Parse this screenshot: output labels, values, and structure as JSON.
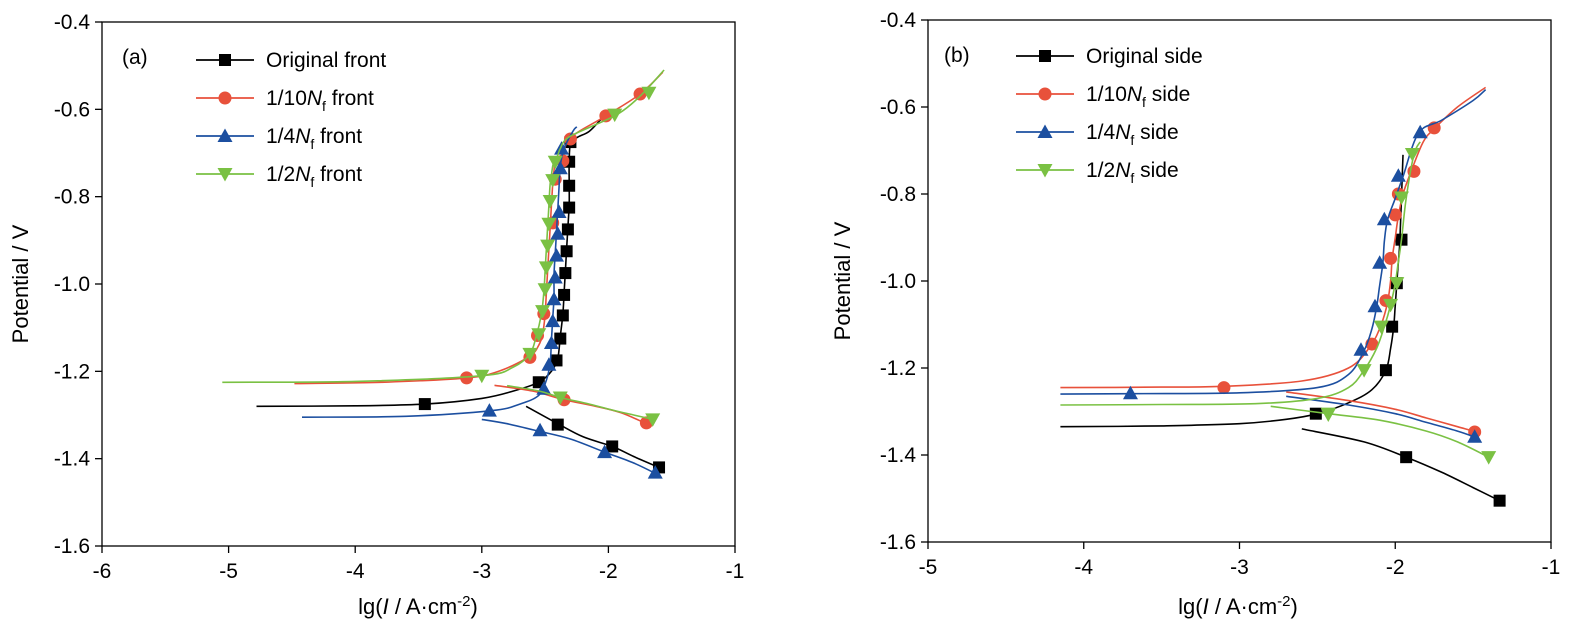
{
  "chart_data": [
    {
      "type": "line",
      "panel_label": "(a)",
      "xlabel": {
        "prefix": "lg(",
        "italic": "I",
        "mid": " / A·cm",
        "sup": "-2",
        "suffix": ")"
      },
      "ylabel": "Potential / V",
      "xlim": [
        -6,
        -1
      ],
      "ylim": [
        -1.6,
        -0.4
      ],
      "x_ticks": [
        -6,
        -5,
        -4,
        -3,
        -2,
        -1
      ],
      "x_tick_labels": [
        "-6",
        "-5",
        "-4",
        "-3",
        "-2",
        "-1"
      ],
      "y_ticks": [
        -1.6,
        -1.4,
        -1.2,
        -1.0,
        -0.8,
        -0.6,
        -0.4
      ],
      "y_tick_labels": [
        "-1.6",
        "-1.4",
        "-1.2",
        "-1.0",
        "-0.8",
        "-0.6",
        "-0.4"
      ],
      "grid": false,
      "legend_position": "top-left",
      "series": [
        {
          "name": "Original front",
          "legend": {
            "pre": "Original front",
            "italic": "",
            "sub": "",
            "post": ""
          },
          "color": "#000000",
          "marker": "square",
          "x": [
            -4.78,
            -4.0,
            -3.45,
            -3.0,
            -2.75,
            -2.55,
            -2.45,
            -2.4,
            -2.38,
            -2.36,
            -2.35,
            -2.34,
            -2.33,
            -2.32,
            -2.31,
            -2.31,
            -2.31,
            -2.3,
            -2.25,
            -2.15,
            -2.05
          ],
          "y": [
            -1.28,
            -1.279,
            -1.275,
            -1.262,
            -1.245,
            -1.225,
            -1.2,
            -1.17,
            -1.12,
            -1.07,
            -1.02,
            -0.97,
            -0.92,
            -0.87,
            -0.82,
            -0.77,
            -0.72,
            -0.68,
            -0.665,
            -0.65,
            -0.62
          ],
          "markers_x": [
            -3.45,
            -2.55,
            -2.41,
            -2.38,
            -2.36,
            -2.35,
            -2.34,
            -2.33,
            -2.32,
            -2.31,
            -2.31,
            -2.31,
            -2.3
          ],
          "markers_y": [
            -1.275,
            -1.225,
            -1.175,
            -1.125,
            -1.072,
            -1.025,
            -0.975,
            -0.925,
            -0.875,
            -0.825,
            -0.775,
            -0.72,
            -0.675
          ],
          "branch_x": [
            -2.65,
            -2.4,
            -2.2,
            -1.97,
            -1.8,
            -1.6
          ],
          "branch_y": [
            -1.28,
            -1.32,
            -1.35,
            -1.372,
            -1.395,
            -1.42
          ],
          "branch_markers_x": [
            -2.4,
            -1.97,
            -1.6
          ],
          "branch_markers_y": [
            -1.322,
            -1.372,
            -1.42
          ]
        },
        {
          "name": "1/10Nf front",
          "legend": {
            "pre": "1/10",
            "italic": "N",
            "sub": "f",
            "post": " front"
          },
          "color": "#e8513b",
          "marker": "circle",
          "x": [
            -4.48,
            -3.8,
            -3.12,
            -2.85,
            -2.62,
            -2.55,
            -2.52,
            -2.5,
            -2.49,
            -2.48,
            -2.47,
            -2.46,
            -2.45,
            -2.44,
            -2.43,
            -2.42,
            -2.4,
            -2.36,
            -2.3,
            -2.02,
            -1.75,
            -1.57
          ],
          "y": [
            -1.228,
            -1.225,
            -1.215,
            -1.198,
            -1.165,
            -1.14,
            -1.115,
            -1.07,
            -1.02,
            -0.97,
            -0.92,
            -0.87,
            -0.82,
            -0.77,
            -0.74,
            -0.72,
            -0.715,
            -0.71,
            -0.665,
            -0.615,
            -0.565,
            -0.515
          ],
          "markers_x": [
            -3.12,
            -2.62,
            -2.56,
            -2.51,
            -2.44,
            -2.42,
            -2.36,
            -2.3,
            -2.02,
            -1.75
          ],
          "markers_y": [
            -1.215,
            -1.168,
            -1.118,
            -1.068,
            -0.86,
            -0.76,
            -0.718,
            -0.668,
            -0.615,
            -0.565
          ],
          "branch_x": [
            -2.9,
            -2.6,
            -2.35,
            -2.1,
            -1.9,
            -1.7
          ],
          "branch_y": [
            -1.232,
            -1.245,
            -1.265,
            -1.28,
            -1.295,
            -1.32
          ],
          "branch_markers_x": [
            -2.35,
            -1.7
          ],
          "branch_markers_y": [
            -1.265,
            -1.318
          ]
        },
        {
          "name": "1/4Nf front",
          "legend": {
            "pre": "1/4",
            "italic": "N",
            "sub": "f",
            "post": " front"
          },
          "color": "#1c4fa0",
          "marker": "triangle-up",
          "x": [
            -4.42,
            -3.6,
            -2.92,
            -2.7,
            -2.55,
            -2.49,
            -2.46,
            -2.45,
            -2.44,
            -2.43,
            -2.43,
            -2.42,
            -2.41,
            -2.4,
            -2.39,
            -2.38,
            -2.35,
            -2.28,
            -2.25
          ],
          "y": [
            -1.305,
            -1.303,
            -1.29,
            -1.275,
            -1.255,
            -1.22,
            -1.18,
            -1.13,
            -1.08,
            -1.03,
            -0.98,
            -0.93,
            -0.88,
            -0.83,
            -0.78,
            -0.73,
            -0.69,
            -0.65,
            -0.64
          ],
          "markers_x": [
            -2.94,
            -2.51,
            -2.47,
            -2.45,
            -2.44,
            -2.43,
            -2.42,
            -2.41,
            -2.4,
            -2.39,
            -2.38,
            -2.37
          ],
          "markers_y": [
            -1.29,
            -1.24,
            -1.185,
            -1.135,
            -1.085,
            -1.035,
            -0.985,
            -0.935,
            -0.885,
            -0.835,
            -0.735,
            -0.69
          ],
          "branch_x": [
            -3.0,
            -2.8,
            -2.55,
            -2.3,
            -2.03,
            -1.8,
            -1.62
          ],
          "branch_y": [
            -1.31,
            -1.32,
            -1.337,
            -1.355,
            -1.385,
            -1.41,
            -1.435
          ],
          "branch_markers_x": [
            -2.54,
            -2.03,
            -1.63
          ],
          "branch_markers_y": [
            -1.335,
            -1.385,
            -1.432
          ]
        },
        {
          "name": "1/2Nf front",
          "legend": {
            "pre": "1/2",
            "italic": "N",
            "sub": "f",
            "post": " front"
          },
          "color": "#7ac143",
          "marker": "triangle-down",
          "x": [
            -5.05,
            -4.0,
            -3.0,
            -2.75,
            -2.62,
            -2.57,
            -2.53,
            -2.51,
            -2.5,
            -2.49,
            -2.48,
            -2.47,
            -2.46,
            -2.45,
            -2.44,
            -2.43,
            -2.42,
            -2.4,
            -2.38,
            -2.32,
            -2.1,
            -1.92,
            -1.75,
            -1.56
          ],
          "y": [
            -1.225,
            -1.223,
            -1.21,
            -1.19,
            -1.16,
            -1.12,
            -1.07,
            -1.02,
            -0.97,
            -0.92,
            -0.87,
            -0.82,
            -0.77,
            -0.75,
            -0.73,
            -0.72,
            -0.715,
            -0.705,
            -0.69,
            -0.665,
            -0.635,
            -0.61,
            -0.57,
            -0.51
          ],
          "markers_x": [
            -3.0,
            -2.62,
            -2.55,
            -2.52,
            -2.5,
            -2.49,
            -2.48,
            -2.47,
            -2.46,
            -2.44,
            -2.42,
            -1.95,
            -1.68
          ],
          "markers_y": [
            -1.21,
            -1.16,
            -1.115,
            -1.062,
            -1.012,
            -0.962,
            -0.912,
            -0.862,
            -0.81,
            -0.762,
            -0.72,
            -0.612,
            -0.562
          ],
          "branch_x": [
            -2.8,
            -2.55,
            -2.38,
            -2.15,
            -1.95,
            -1.8,
            -1.65
          ],
          "branch_y": [
            -1.233,
            -1.245,
            -1.26,
            -1.275,
            -1.29,
            -1.3,
            -1.31
          ],
          "branch_markers_x": [
            -2.38,
            -1.65
          ],
          "branch_markers_y": [
            -1.26,
            -1.31
          ]
        }
      ]
    },
    {
      "type": "line",
      "panel_label": "(b)",
      "xlabel": {
        "prefix": "lg(",
        "italic": "I",
        "mid": " / A·cm",
        "sup": "-2",
        "suffix": ")"
      },
      "ylabel": "Potential / V",
      "xlim": [
        -5,
        -1
      ],
      "ylim": [
        -1.6,
        -0.4
      ],
      "x_ticks": [
        -5,
        -4,
        -3,
        -2,
        -1
      ],
      "x_tick_labels": [
        "-5",
        "-4",
        "-3",
        "-2",
        "-1"
      ],
      "y_ticks": [
        -1.6,
        -1.4,
        -1.2,
        -1.0,
        -0.8,
        -0.6,
        -0.4
      ],
      "y_tick_labels": [
        "-1.6",
        "-1.4",
        "-1.2",
        "-1.0",
        "-0.8",
        "-0.6",
        "-0.4"
      ],
      "grid": false,
      "legend_position": "top-left",
      "series": [
        {
          "name": "Original side",
          "legend": {
            "pre": "Original side",
            "italic": "",
            "sub": "",
            "post": ""
          },
          "color": "#000000",
          "marker": "square",
          "x": [
            -4.15,
            -3.5,
            -3.0,
            -2.7,
            -2.5,
            -2.3,
            -2.15,
            -2.06,
            -2.03,
            -2.01,
            -2.0,
            -1.99,
            -1.98,
            -1.97,
            -1.95
          ],
          "y": [
            -1.335,
            -1.333,
            -1.328,
            -1.318,
            -1.305,
            -1.28,
            -1.25,
            -1.205,
            -1.155,
            -1.105,
            -1.055,
            -1.005,
            -0.955,
            -0.905,
            -0.71
          ],
          "markers_x": [
            -2.51,
            -2.06,
            -2.02,
            -1.99,
            -1.96
          ],
          "markers_y": [
            -1.305,
            -1.205,
            -1.105,
            -1.005,
            -0.905
          ],
          "branch_x": [
            -2.6,
            -2.2,
            -1.93,
            -1.7,
            -1.5,
            -1.33
          ],
          "branch_y": [
            -1.34,
            -1.37,
            -1.405,
            -1.44,
            -1.475,
            -1.505
          ],
          "branch_markers_x": [
            -1.93,
            -1.33
          ],
          "branch_markers_y": [
            -1.405,
            -1.505
          ]
        },
        {
          "name": "1/10Nf side",
          "legend": {
            "pre": "1/10",
            "italic": "N",
            "sub": "f",
            "post": " side"
          },
          "color": "#e8513b",
          "marker": "circle",
          "x": [
            -4.15,
            -3.5,
            -3.1,
            -2.6,
            -2.3,
            -2.16,
            -2.09,
            -2.05,
            -2.03,
            -2.02,
            -2.0,
            -1.98,
            -1.95,
            -1.9,
            -1.82,
            -1.75,
            -1.6,
            -1.42
          ],
          "y": [
            -1.245,
            -1.244,
            -1.242,
            -1.23,
            -1.2,
            -1.15,
            -1.1,
            -1.05,
            -1.0,
            -0.95,
            -0.9,
            -0.85,
            -0.8,
            -0.75,
            -0.68,
            -0.65,
            -0.6,
            -0.555
          ],
          "markers_x": [
            -3.1,
            -2.15,
            -2.06,
            -2.03,
            -2.0,
            -1.98,
            -1.88,
            -1.75
          ],
          "markers_y": [
            -1.245,
            -1.145,
            -1.045,
            -0.948,
            -0.848,
            -0.8,
            -0.748,
            -0.648
          ],
          "branch_x": [
            -2.7,
            -2.3,
            -2.0,
            -1.8,
            -1.6,
            -1.5
          ],
          "branch_y": [
            -1.255,
            -1.275,
            -1.295,
            -1.315,
            -1.335,
            -1.345
          ],
          "branch_markers_x": [
            -1.49
          ],
          "branch_markers_y": [
            -1.347
          ]
        },
        {
          "name": "1/4Nf side",
          "legend": {
            "pre": "1/4",
            "italic": "N",
            "sub": "f",
            "post": " side"
          },
          "color": "#1c4fa0",
          "marker": "triangle-up",
          "x": [
            -4.15,
            -3.7,
            -3.0,
            -2.5,
            -2.3,
            -2.2,
            -2.15,
            -2.12,
            -2.1,
            -2.08,
            -2.07,
            -2.05,
            -2.0,
            -1.95,
            -1.85,
            -1.7,
            -1.5,
            -1.42
          ],
          "y": [
            -1.26,
            -1.259,
            -1.257,
            -1.245,
            -1.215,
            -1.16,
            -1.11,
            -1.06,
            -1.01,
            -0.96,
            -0.91,
            -0.86,
            -0.81,
            -0.76,
            -0.66,
            -0.63,
            -0.585,
            -0.56
          ],
          "markers_x": [
            -3.7,
            -2.22,
            -2.13,
            -2.1,
            -2.07,
            -1.98,
            -1.84
          ],
          "markers_y": [
            -1.258,
            -1.158,
            -1.058,
            -0.958,
            -0.858,
            -0.758,
            -0.658
          ],
          "branch_x": [
            -2.7,
            -2.3,
            -2.0,
            -1.8,
            -1.6,
            -1.48
          ],
          "branch_y": [
            -1.265,
            -1.285,
            -1.305,
            -1.325,
            -1.345,
            -1.36
          ],
          "branch_markers_x": [
            -1.49
          ],
          "branch_markers_y": [
            -1.358
          ]
        },
        {
          "name": "1/2Nf side",
          "legend": {
            "pre": "1/2",
            "italic": "N",
            "sub": "f",
            "post": " side"
          },
          "color": "#7ac143",
          "marker": "triangle-down",
          "x": [
            -4.15,
            -3.5,
            -2.9,
            -2.5,
            -2.3,
            -2.2,
            -2.12,
            -2.07,
            -2.03,
            -2.0,
            -1.98,
            -1.96,
            -1.93,
            -1.88,
            -1.84
          ],
          "y": [
            -1.285,
            -1.284,
            -1.282,
            -1.27,
            -1.245,
            -1.205,
            -1.155,
            -1.105,
            -1.055,
            -1.005,
            -0.955,
            -0.905,
            -0.81,
            -0.71,
            -0.68
          ],
          "markers_x": [
            -2.43,
            -2.2,
            -2.09,
            -2.03,
            -1.99,
            -1.96,
            -1.89
          ],
          "markers_y": [
            -1.305,
            -1.205,
            -1.105,
            -1.055,
            -1.005,
            -0.808,
            -0.708
          ],
          "branch_x": [
            -2.8,
            -2.43,
            -2.1,
            -1.8,
            -1.6,
            -1.4
          ],
          "branch_y": [
            -1.288,
            -1.305,
            -1.32,
            -1.345,
            -1.37,
            -1.405
          ],
          "branch_markers_x": [
            -2.43,
            -1.4
          ],
          "branch_markers_y": [
            -1.307,
            -1.405
          ]
        }
      ]
    }
  ]
}
